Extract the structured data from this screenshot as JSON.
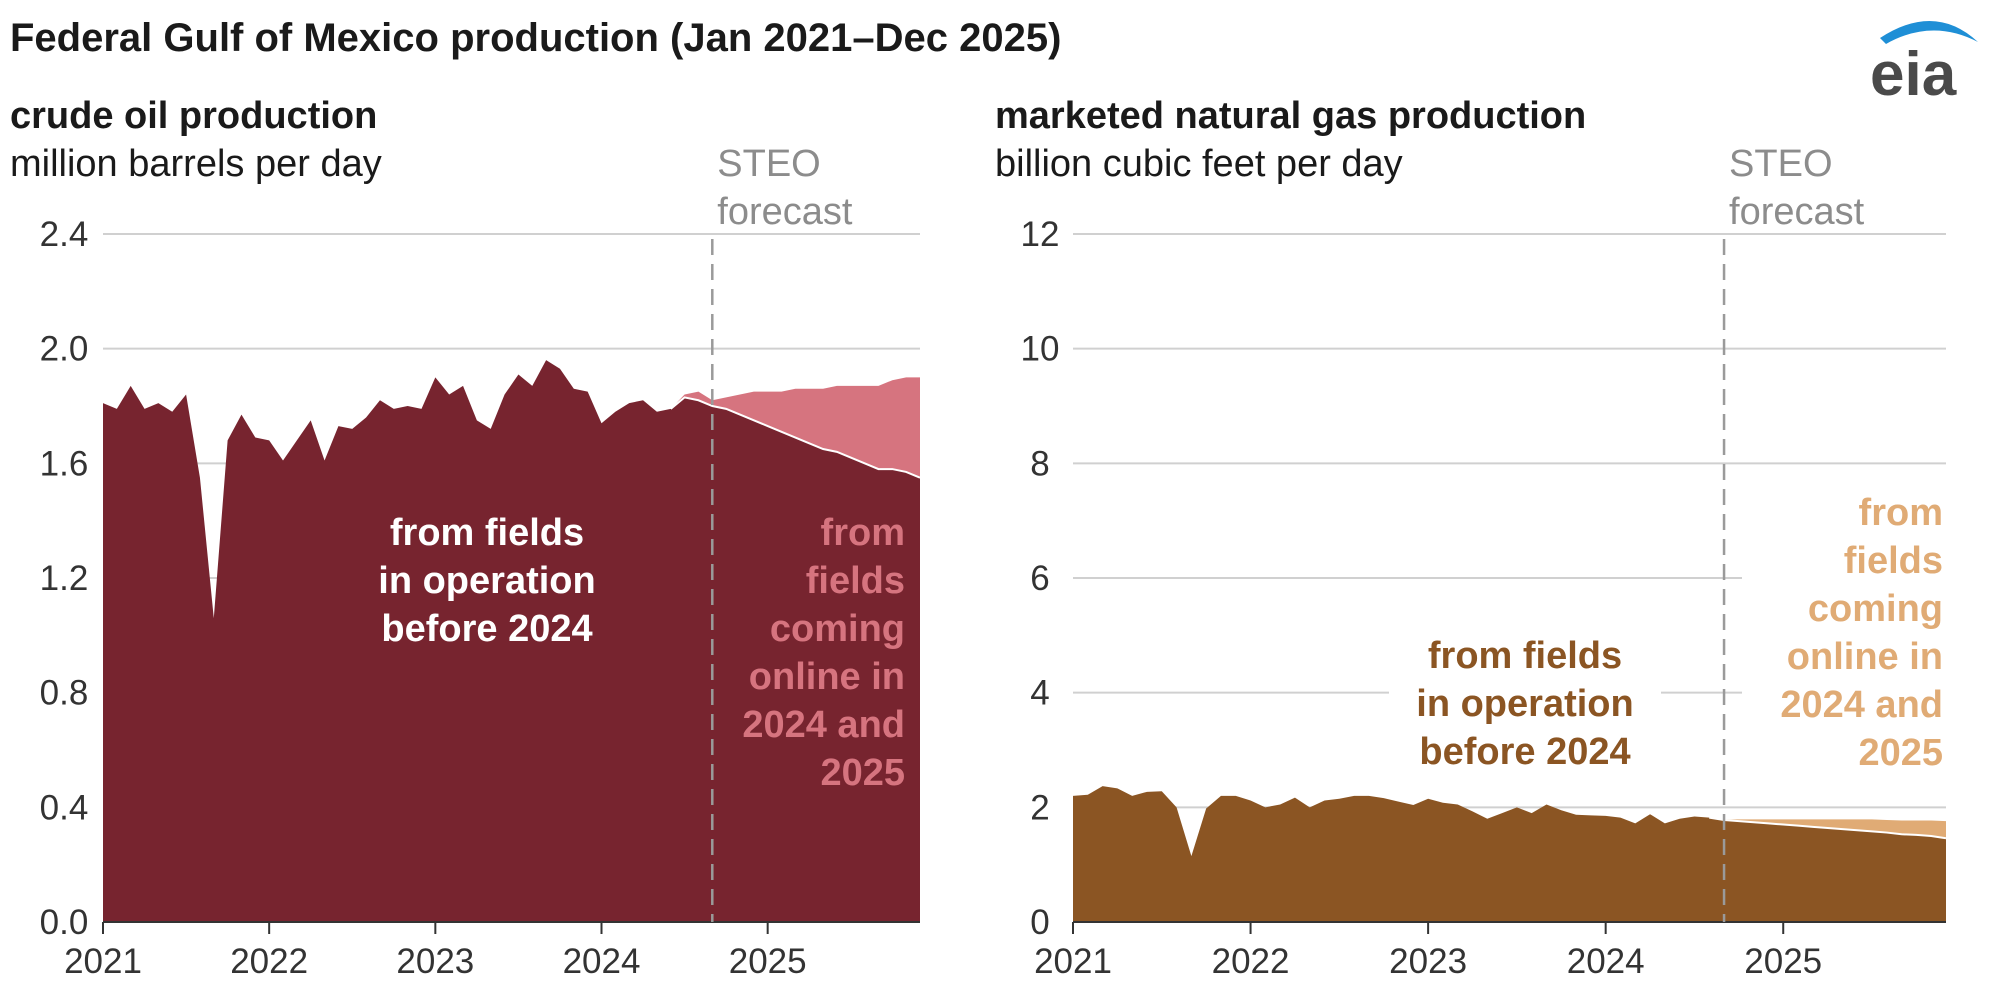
{
  "title": "Federal Gulf of Mexico production (Jan 2021–Dec 2025)",
  "logo_text": "eia",
  "colors": {
    "oil_existing": "#77242f",
    "oil_new": "#d6747f",
    "gas_existing": "#8b5523",
    "gas_new": "#e0ab75",
    "grid": "#d0d0d0",
    "forecast_line": "#9a9a9a",
    "logo_arc": "#1f8fd6"
  },
  "chart_data": [
    {
      "type": "area",
      "title": "crude oil production",
      "ylabel": "million barrels per day",
      "ylim": [
        0,
        2.4
      ],
      "yticks": [
        "0.0",
        "0.4",
        "0.8",
        "1.2",
        "1.6",
        "2.0",
        "2.4"
      ],
      "xlim": [
        2021,
        2025.9167
      ],
      "xticks": [
        "2021",
        "2022",
        "2023",
        "2024",
        "2025"
      ],
      "forecast_label": [
        "STEO",
        "forecast"
      ],
      "forecast_start": 2024.6667,
      "stacked": true,
      "x": [
        2021.0,
        2021.0833,
        2021.1667,
        2021.25,
        2021.3333,
        2021.4167,
        2021.5,
        2021.5833,
        2021.6667,
        2021.75,
        2021.8333,
        2021.9167,
        2022.0,
        2022.0833,
        2022.1667,
        2022.25,
        2022.3333,
        2022.4167,
        2022.5,
        2022.5833,
        2022.6667,
        2022.75,
        2022.8333,
        2022.9167,
        2023.0,
        2023.0833,
        2023.1667,
        2023.25,
        2023.3333,
        2023.4167,
        2023.5,
        2023.5833,
        2023.6667,
        2023.75,
        2023.8333,
        2023.9167,
        2024.0,
        2024.0833,
        2024.1667,
        2024.25,
        2024.3333,
        2024.4167,
        2024.5,
        2024.5833,
        2024.6667,
        2024.75,
        2024.8333,
        2024.9167,
        2025.0,
        2025.0833,
        2025.1667,
        2025.25,
        2025.3333,
        2025.4167,
        2025.5,
        2025.5833,
        2025.6667,
        2025.75,
        2025.8333,
        2025.9167
      ],
      "series": [
        {
          "name": "from fields in operation before 2024",
          "label_lines": [
            "from fields",
            "in operation",
            "before 2024"
          ],
          "values": [
            1.81,
            1.79,
            1.87,
            1.79,
            1.81,
            1.78,
            1.84,
            1.55,
            1.06,
            1.68,
            1.77,
            1.69,
            1.68,
            1.61,
            1.68,
            1.75,
            1.61,
            1.73,
            1.72,
            1.76,
            1.82,
            1.79,
            1.8,
            1.79,
            1.9,
            1.84,
            1.87,
            1.75,
            1.72,
            1.84,
            1.91,
            1.87,
            1.96,
            1.93,
            1.86,
            1.85,
            1.74,
            1.78,
            1.81,
            1.82,
            1.78,
            1.79,
            1.83,
            1.82,
            1.8,
            1.79,
            1.77,
            1.75,
            1.73,
            1.71,
            1.69,
            1.67,
            1.65,
            1.64,
            1.62,
            1.6,
            1.58,
            1.58,
            1.57,
            1.55
          ]
        },
        {
          "name": "from fields coming online in 2024 and 2025",
          "label_lines": [
            "from",
            "fields",
            "coming",
            "online in",
            "2024 and",
            "2025"
          ],
          "values": [
            0,
            0,
            0,
            0,
            0,
            0,
            0,
            0,
            0,
            0,
            0,
            0,
            0,
            0,
            0,
            0,
            0,
            0,
            0,
            0,
            0,
            0,
            0,
            0,
            0,
            0,
            0,
            0,
            0,
            0,
            0,
            0,
            0,
            0,
            0,
            0,
            0,
            0,
            0,
            0,
            0,
            0,
            0.01,
            0.03,
            0.02,
            0.04,
            0.07,
            0.1,
            0.12,
            0.14,
            0.17,
            0.19,
            0.21,
            0.23,
            0.25,
            0.27,
            0.29,
            0.31,
            0.33,
            0.35
          ]
        }
      ]
    },
    {
      "type": "area",
      "title": "marketed natural gas production",
      "ylabel": "billion cubic feet per day",
      "ylim": [
        0,
        12
      ],
      "yticks": [
        "0",
        "2",
        "4",
        "6",
        "8",
        "10",
        "12"
      ],
      "xlim": [
        2021,
        2025.9167
      ],
      "xticks": [
        "2021",
        "2022",
        "2023",
        "2024",
        "2025"
      ],
      "forecast_label": [
        "STEO",
        "forecast"
      ],
      "forecast_start": 2024.6667,
      "stacked": true,
      "x": [
        2021.0,
        2021.0833,
        2021.1667,
        2021.25,
        2021.3333,
        2021.4167,
        2021.5,
        2021.5833,
        2021.6667,
        2021.75,
        2021.8333,
        2021.9167,
        2022.0,
        2022.0833,
        2022.1667,
        2022.25,
        2022.3333,
        2022.4167,
        2022.5,
        2022.5833,
        2022.6667,
        2022.75,
        2022.8333,
        2022.9167,
        2023.0,
        2023.0833,
        2023.1667,
        2023.25,
        2023.3333,
        2023.4167,
        2023.5,
        2023.5833,
        2023.6667,
        2023.75,
        2023.8333,
        2023.9167,
        2024.0,
        2024.0833,
        2024.1667,
        2024.25,
        2024.3333,
        2024.4167,
        2024.5,
        2024.5833,
        2024.6667,
        2024.75,
        2024.8333,
        2024.9167,
        2025.0,
        2025.0833,
        2025.1667,
        2025.25,
        2025.3333,
        2025.4167,
        2025.5,
        2025.5833,
        2025.6667,
        2025.75,
        2025.8333,
        2025.9167
      ],
      "series": [
        {
          "name": "from fields in operation before 2024",
          "label_lines": [
            "from fields",
            "in operation",
            "before 2024"
          ],
          "values": [
            2.2,
            2.22,
            2.37,
            2.33,
            2.2,
            2.27,
            2.28,
            2.0,
            1.15,
            1.98,
            2.2,
            2.2,
            2.12,
            2.0,
            2.05,
            2.17,
            2.0,
            2.12,
            2.15,
            2.2,
            2.2,
            2.16,
            2.1,
            2.04,
            2.15,
            2.08,
            2.05,
            1.93,
            1.8,
            1.9,
            2.0,
            1.9,
            2.05,
            1.95,
            1.87,
            1.86,
            1.85,
            1.82,
            1.72,
            1.88,
            1.72,
            1.8,
            1.84,
            1.82,
            1.78,
            1.76,
            1.74,
            1.72,
            1.7,
            1.68,
            1.66,
            1.64,
            1.62,
            1.6,
            1.58,
            1.56,
            1.53,
            1.52,
            1.5,
            1.46
          ]
        },
        {
          "name": "from fields coming online in 2024 and 2025",
          "label_lines": [
            "from",
            "fields",
            "coming",
            "online in",
            "2024 and",
            "2025"
          ],
          "values": [
            0,
            0,
            0,
            0,
            0,
            0,
            0,
            0,
            0,
            0,
            0,
            0,
            0,
            0,
            0,
            0,
            0,
            0,
            0,
            0,
            0,
            0,
            0,
            0,
            0,
            0,
            0,
            0,
            0,
            0,
            0,
            0,
            0,
            0,
            0,
            0,
            0,
            0,
            0,
            0,
            0,
            0,
            0.0,
            0.0,
            0.01,
            0.03,
            0.05,
            0.07,
            0.09,
            0.11,
            0.13,
            0.15,
            0.17,
            0.19,
            0.21,
            0.22,
            0.24,
            0.25,
            0.27,
            0.3
          ]
        }
      ]
    }
  ]
}
